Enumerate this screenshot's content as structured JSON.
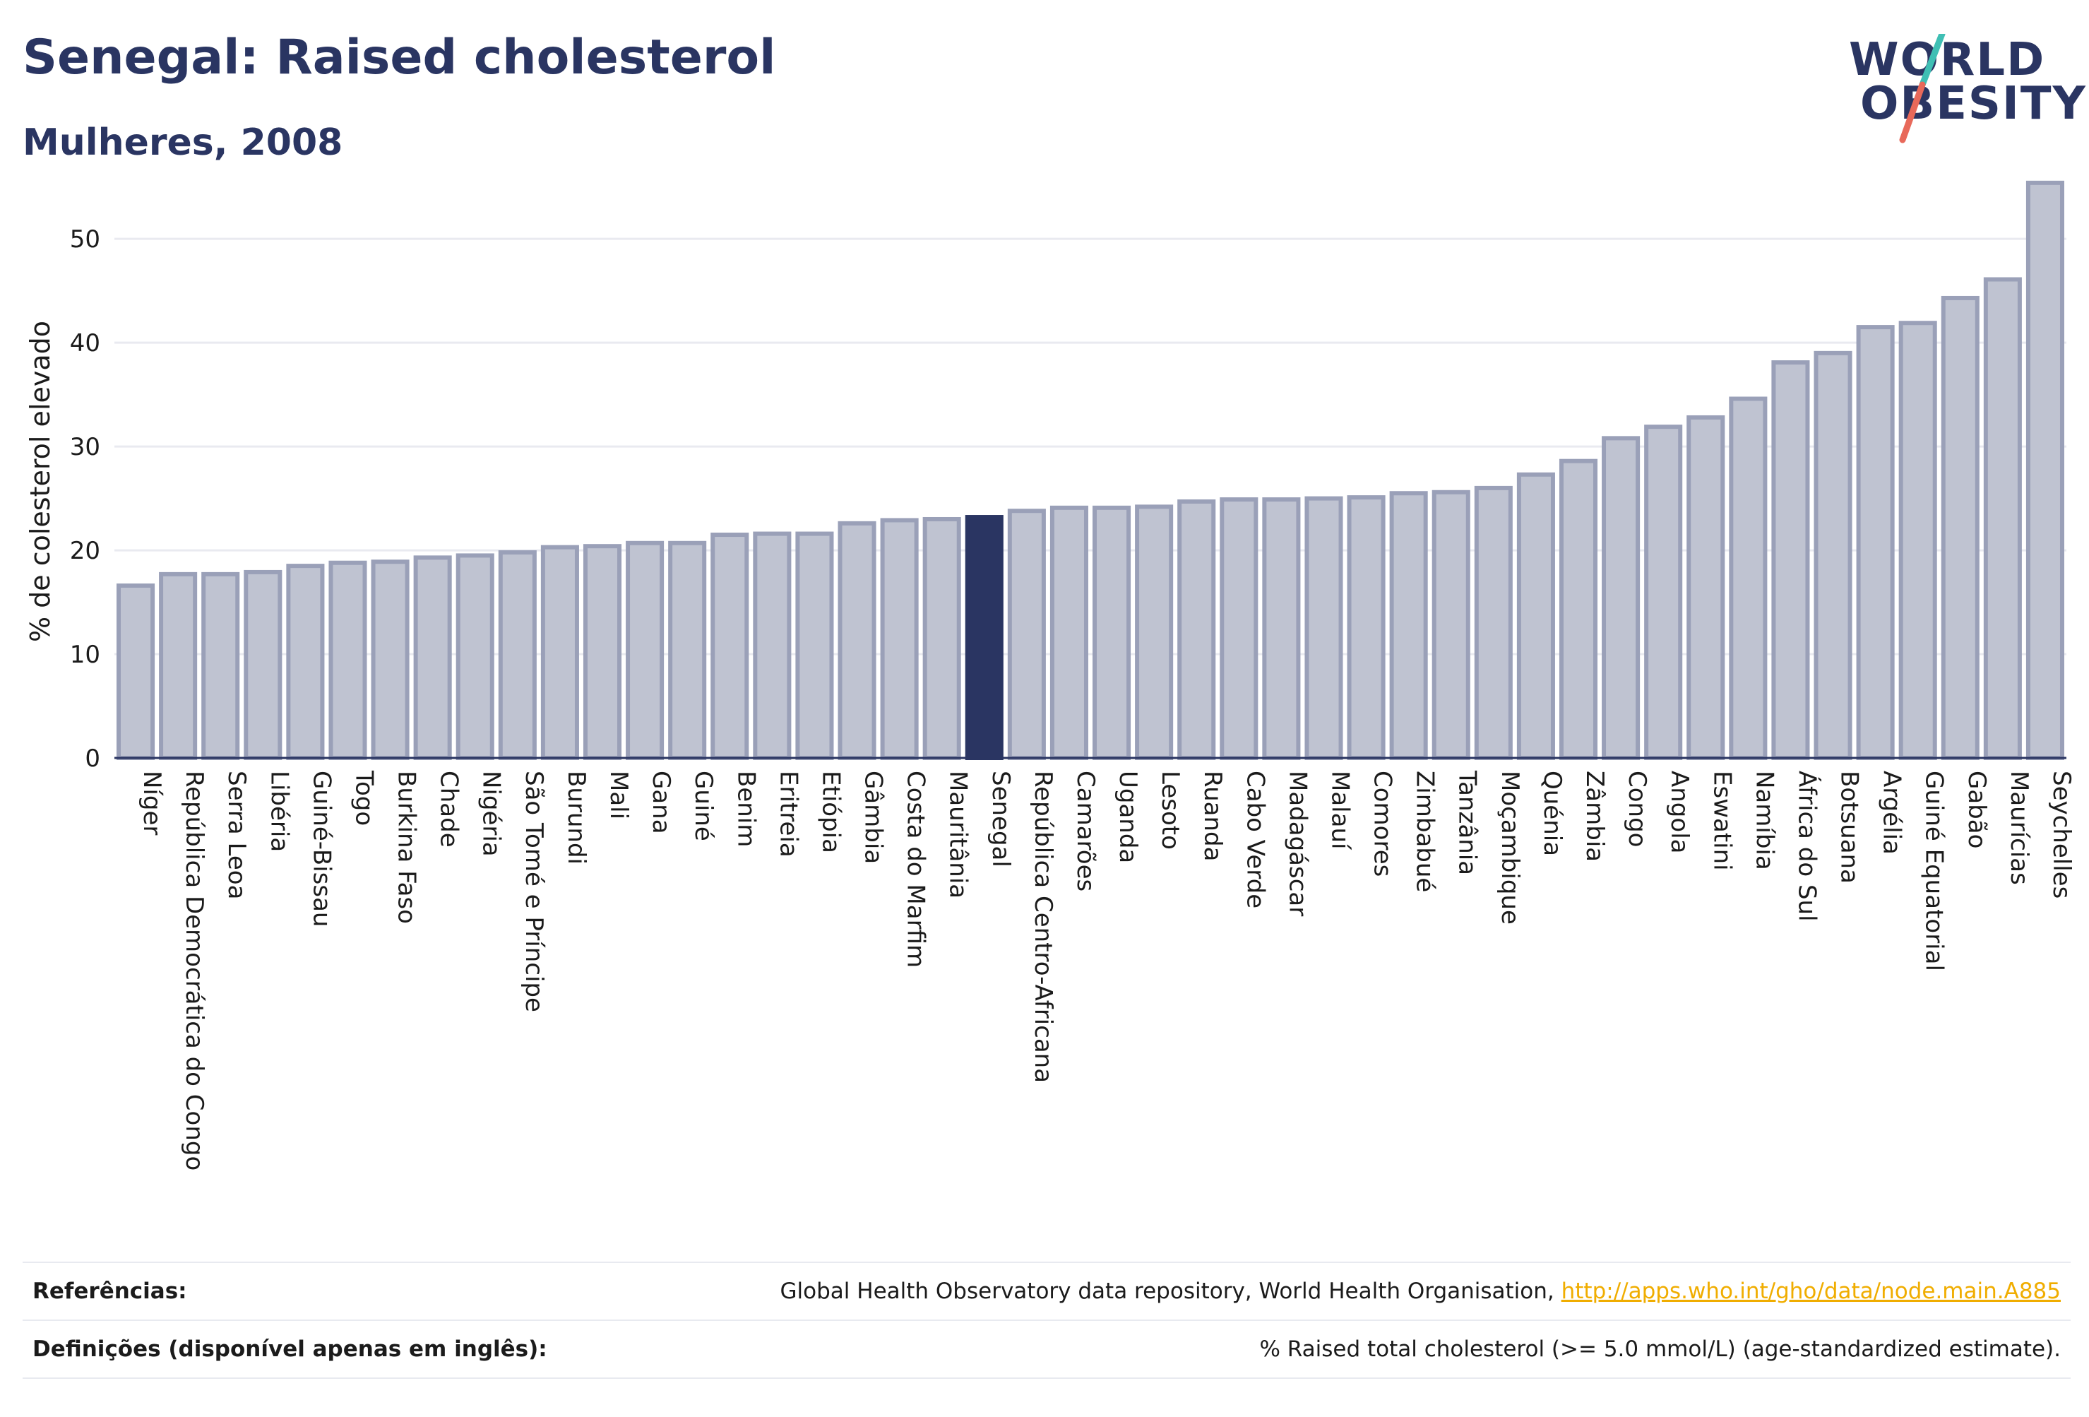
{
  "header": {
    "title": "Senegal: Raised cholesterol",
    "subtitle": "Mulheres, 2008"
  },
  "logo": {
    "line1": "WORLD",
    "line2": "OBESITY",
    "colors": {
      "text": "#2a3562",
      "slash_top": "#3fbfb4",
      "slash_bottom": "#e8695a"
    }
  },
  "colors": {
    "bar_fill": "#bfc3d1",
    "bar_stroke": "#9aa0b8",
    "highlight": "#2a3562",
    "grid": "#e9eaf0",
    "axis": "#2a3562"
  },
  "chart_data": {
    "type": "bar",
    "ylabel": "% de colesterol elevado",
    "ylim": [
      0,
      56
    ],
    "yticks": [
      0,
      10,
      20,
      30,
      40,
      50
    ],
    "grid": true,
    "highlight": "Senegal",
    "categories": [
      "Níger",
      "República Democrática do Congo",
      "Serra Leoa",
      "Libéria",
      "Guiné-Bissau",
      "Togo",
      "Burkina Faso",
      "Chade",
      "Nigéria",
      "São Tomé e Príncipe",
      "Burundi",
      "Mali",
      "Gana",
      "Guiné",
      "Benim",
      "Eritreia",
      "Etiópia",
      "Gâmbia",
      "Costa do Marfim",
      "Mauritânia",
      "Senegal",
      "República Centro-Africana",
      "Camarões",
      "Uganda",
      "Lesoto",
      "Ruanda",
      "Cabo Verde",
      "Madagáscar",
      "Malauí",
      "Comores",
      "Zimbabué",
      "Tanzânia",
      "Moçambique",
      "Quénia",
      "Zâmbia",
      "Congo",
      "Angola",
      "Eswatini",
      "Namíbia",
      "África do Sul",
      "Botsuana",
      "Argélia",
      "Guiné Equatorial",
      "Gabão",
      "Maurícias",
      "Seychelles"
    ],
    "values": [
      16.6,
      17.7,
      17.7,
      17.9,
      18.5,
      18.8,
      18.9,
      19.3,
      19.5,
      19.8,
      20.3,
      20.4,
      20.7,
      20.7,
      21.5,
      21.6,
      21.6,
      22.6,
      22.9,
      23.0,
      23.2,
      23.8,
      24.1,
      24.1,
      24.2,
      24.7,
      24.9,
      24.9,
      25.0,
      25.1,
      25.5,
      25.6,
      26.0,
      27.3,
      28.6,
      30.8,
      31.9,
      32.8,
      34.6,
      38.1,
      39.0,
      41.5,
      41.9,
      44.3,
      46.1,
      55.4
    ]
  },
  "footer": {
    "references_label": "Referências:",
    "references_text": "Global Health Observatory data repository, World Health Organisation, ",
    "references_link": "http://apps.who.int/gho/data/node.main.A885",
    "definitions_label": "Definições (disponível apenas em inglês):",
    "definitions_text": "% Raised total cholesterol (>= 5.0 mmol/L) (age-standardized estimate)."
  }
}
